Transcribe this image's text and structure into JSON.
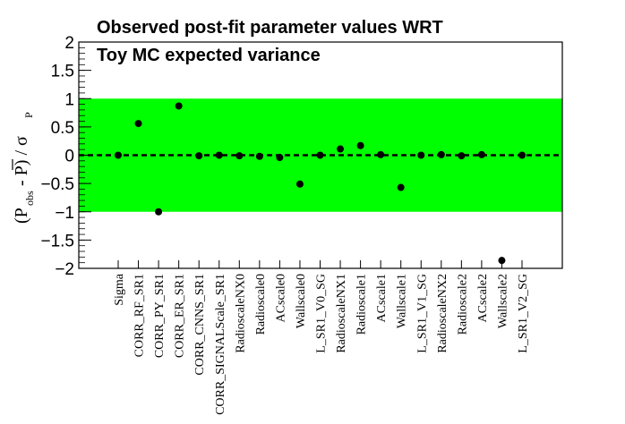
{
  "chart_data": {
    "type": "scatter",
    "title": [
      "Observed post-fit parameter values WRT",
      "Toy MC expected variance"
    ],
    "ylabel": "(P_obs - P̄) / σ_P",
    "ylim": [
      -2,
      2
    ],
    "yticks": [
      -2,
      -1.5,
      -1,
      -0.5,
      0,
      0.5,
      1,
      1.5,
      2
    ],
    "ytick_labels": [
      "−2",
      "−1.5",
      "−1",
      "−0.5",
      "0",
      "0.5",
      "1",
      "1.5",
      "2"
    ],
    "band": {
      "low": -1,
      "high": 1,
      "color": "#00ff00"
    },
    "reference_line": {
      "y": 0,
      "style": "dashed"
    },
    "categories": [
      "Sigma",
      "CORR_RF_SR1",
      "CORR_PY_SR1",
      "CORR_ER_SR1",
      "CORR_CNNS_SR1",
      "CORR_SIGNALScale_SR1",
      "RadioscaleNX0",
      "Radioscale0",
      "ACscale0",
      "Wallscale0",
      "L_SR1_V0_SG",
      "RadioscaleNX1",
      "Radioscale1",
      "ACscale1",
      "Wallscale1",
      "L_SR1_V1_SG",
      "RadioscaleNX2",
      "Radioscale2",
      "ACscale2",
      "Wallscale2",
      "L_SR1_V2_SG"
    ],
    "values": [
      0.0,
      0.56,
      -1.0,
      0.87,
      -0.01,
      0.0,
      -0.01,
      -0.02,
      -0.04,
      -0.51,
      0.0,
      0.11,
      0.17,
      0.01,
      -0.57,
      0.0,
      0.01,
      -0.01,
      0.01,
      -1.86,
      0.0
    ],
    "marker_color": "#000000",
    "grid": false
  }
}
